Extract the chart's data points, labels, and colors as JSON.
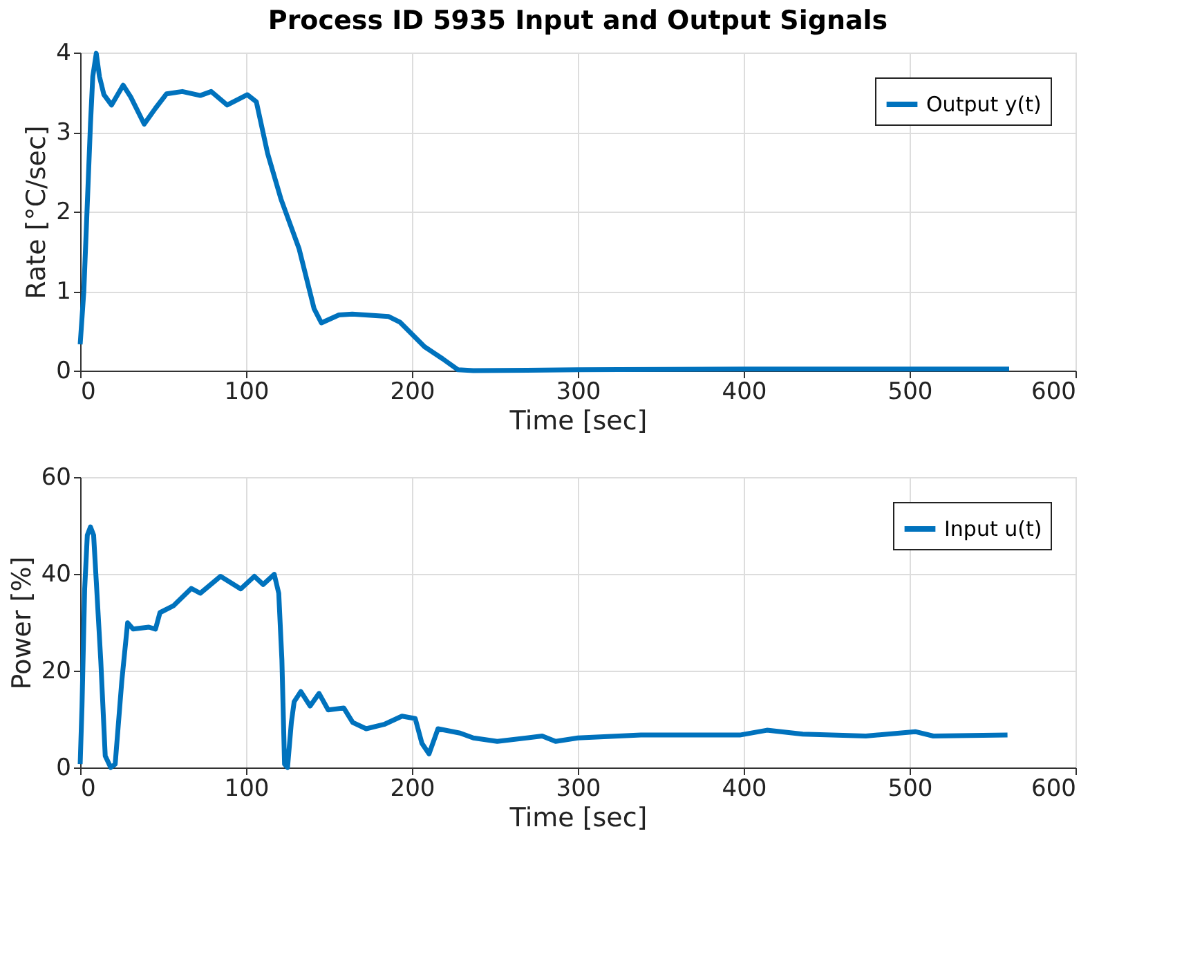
{
  "chart_data": [
    {
      "type": "line",
      "title": "Process ID 5935 Input and Output Signals",
      "xlabel": "Time [sec]",
      "ylabel": "Rate [°C/sec]",
      "xlim": [
        0,
        600
      ],
      "xticks": [
        0,
        100,
        200,
        300,
        400,
        500,
        600
      ],
      "ylim": [
        0,
        4
      ],
      "yticks": [
        0,
        1,
        2,
        3,
        4
      ],
      "grid": true,
      "legend": "top right",
      "line_style": "solid",
      "series": [
        {
          "name": "Output y(t)",
          "color": "#0072bd",
          "x": [
            0,
            2.2,
            4.3,
            6.2,
            7.6,
            9.7,
            11.6,
            14.3,
            18.9,
            25.9,
            30.5,
            38.6,
            45.4,
            52,
            61.6,
            72.4,
            79,
            88.6,
            100.8,
            106.2,
            113,
            121,
            132,
            141,
            145.4,
            156,
            164,
            186,
            192.7,
            207.6,
            218.4,
            227.8,
            237,
            300,
            400,
            500,
            560
          ],
          "values": [
            0.33,
            1.0,
            2.1,
            3.1,
            3.7,
            3.99,
            3.7,
            3.47,
            3.34,
            3.59,
            3.44,
            3.1,
            3.3,
            3.48,
            3.51,
            3.46,
            3.51,
            3.34,
            3.47,
            3.38,
            2.73,
            2.16,
            1.53,
            0.78,
            0.6,
            0.7,
            0.71,
            0.68,
            0.61,
            0.3,
            0.15,
            0.01,
            0.0,
            0.01,
            0.02,
            0.02,
            0.02
          ]
        }
      ]
    },
    {
      "type": "line",
      "xlabel": "Time [sec]",
      "ylabel": "Power [%]",
      "xlim": [
        0,
        600
      ],
      "xticks": [
        0,
        100,
        200,
        300,
        400,
        500,
        600
      ],
      "ylim": [
        0,
        60
      ],
      "yticks": [
        0,
        20,
        40,
        60
      ],
      "grid": true,
      "legend": "top right",
      "line_style": "solid",
      "series": [
        {
          "name": "Input u(t)",
          "color": "#0072bd",
          "x": [
            0,
            1.1,
            2.7,
            4.3,
            6.2,
            8.1,
            9.7,
            12.4,
            15.1,
            18.4,
            21.1,
            25.1,
            28.6,
            31.9,
            41.4,
            45.4,
            48.1,
            56.2,
            67,
            72.4,
            84.6,
            96.8,
            105,
            110.3,
            117,
            119.7,
            121.6,
            123.2,
            125,
            127.3,
            129,
            133,
            138.6,
            144,
            149.5,
            158.9,
            164.3,
            172.4,
            183.2,
            194,
            202,
            206,
            210.3,
            215.7,
            229,
            237,
            251.4,
            278.5,
            286.6,
            300,
            338,
            397.6,
            414,
            435.6,
            473.6,
            503.4,
            514.3,
            559
          ],
          "values": [
            0.7,
            12.7,
            36.8,
            48,
            49.7,
            48,
            38.5,
            22.2,
            2.4,
            0,
            0.7,
            17.9,
            29.9,
            28.6,
            29,
            28.6,
            32,
            33.4,
            37,
            36,
            39.5,
            36.9,
            39.5,
            37.8,
            39.9,
            36,
            22.2,
            0.7,
            0,
            9.3,
            13.6,
            15.7,
            12.7,
            15.3,
            11.9,
            12.3,
            9.3,
            8,
            8.9,
            10.6,
            10.1,
            5,
            2.8,
            8,
            7.1,
            6.1,
            5.4,
            6.5,
            5.4,
            6.1,
            6.7,
            6.7,
            7.7,
            6.9,
            6.5,
            7.4,
            6.5,
            6.7
          ]
        }
      ]
    }
  ]
}
